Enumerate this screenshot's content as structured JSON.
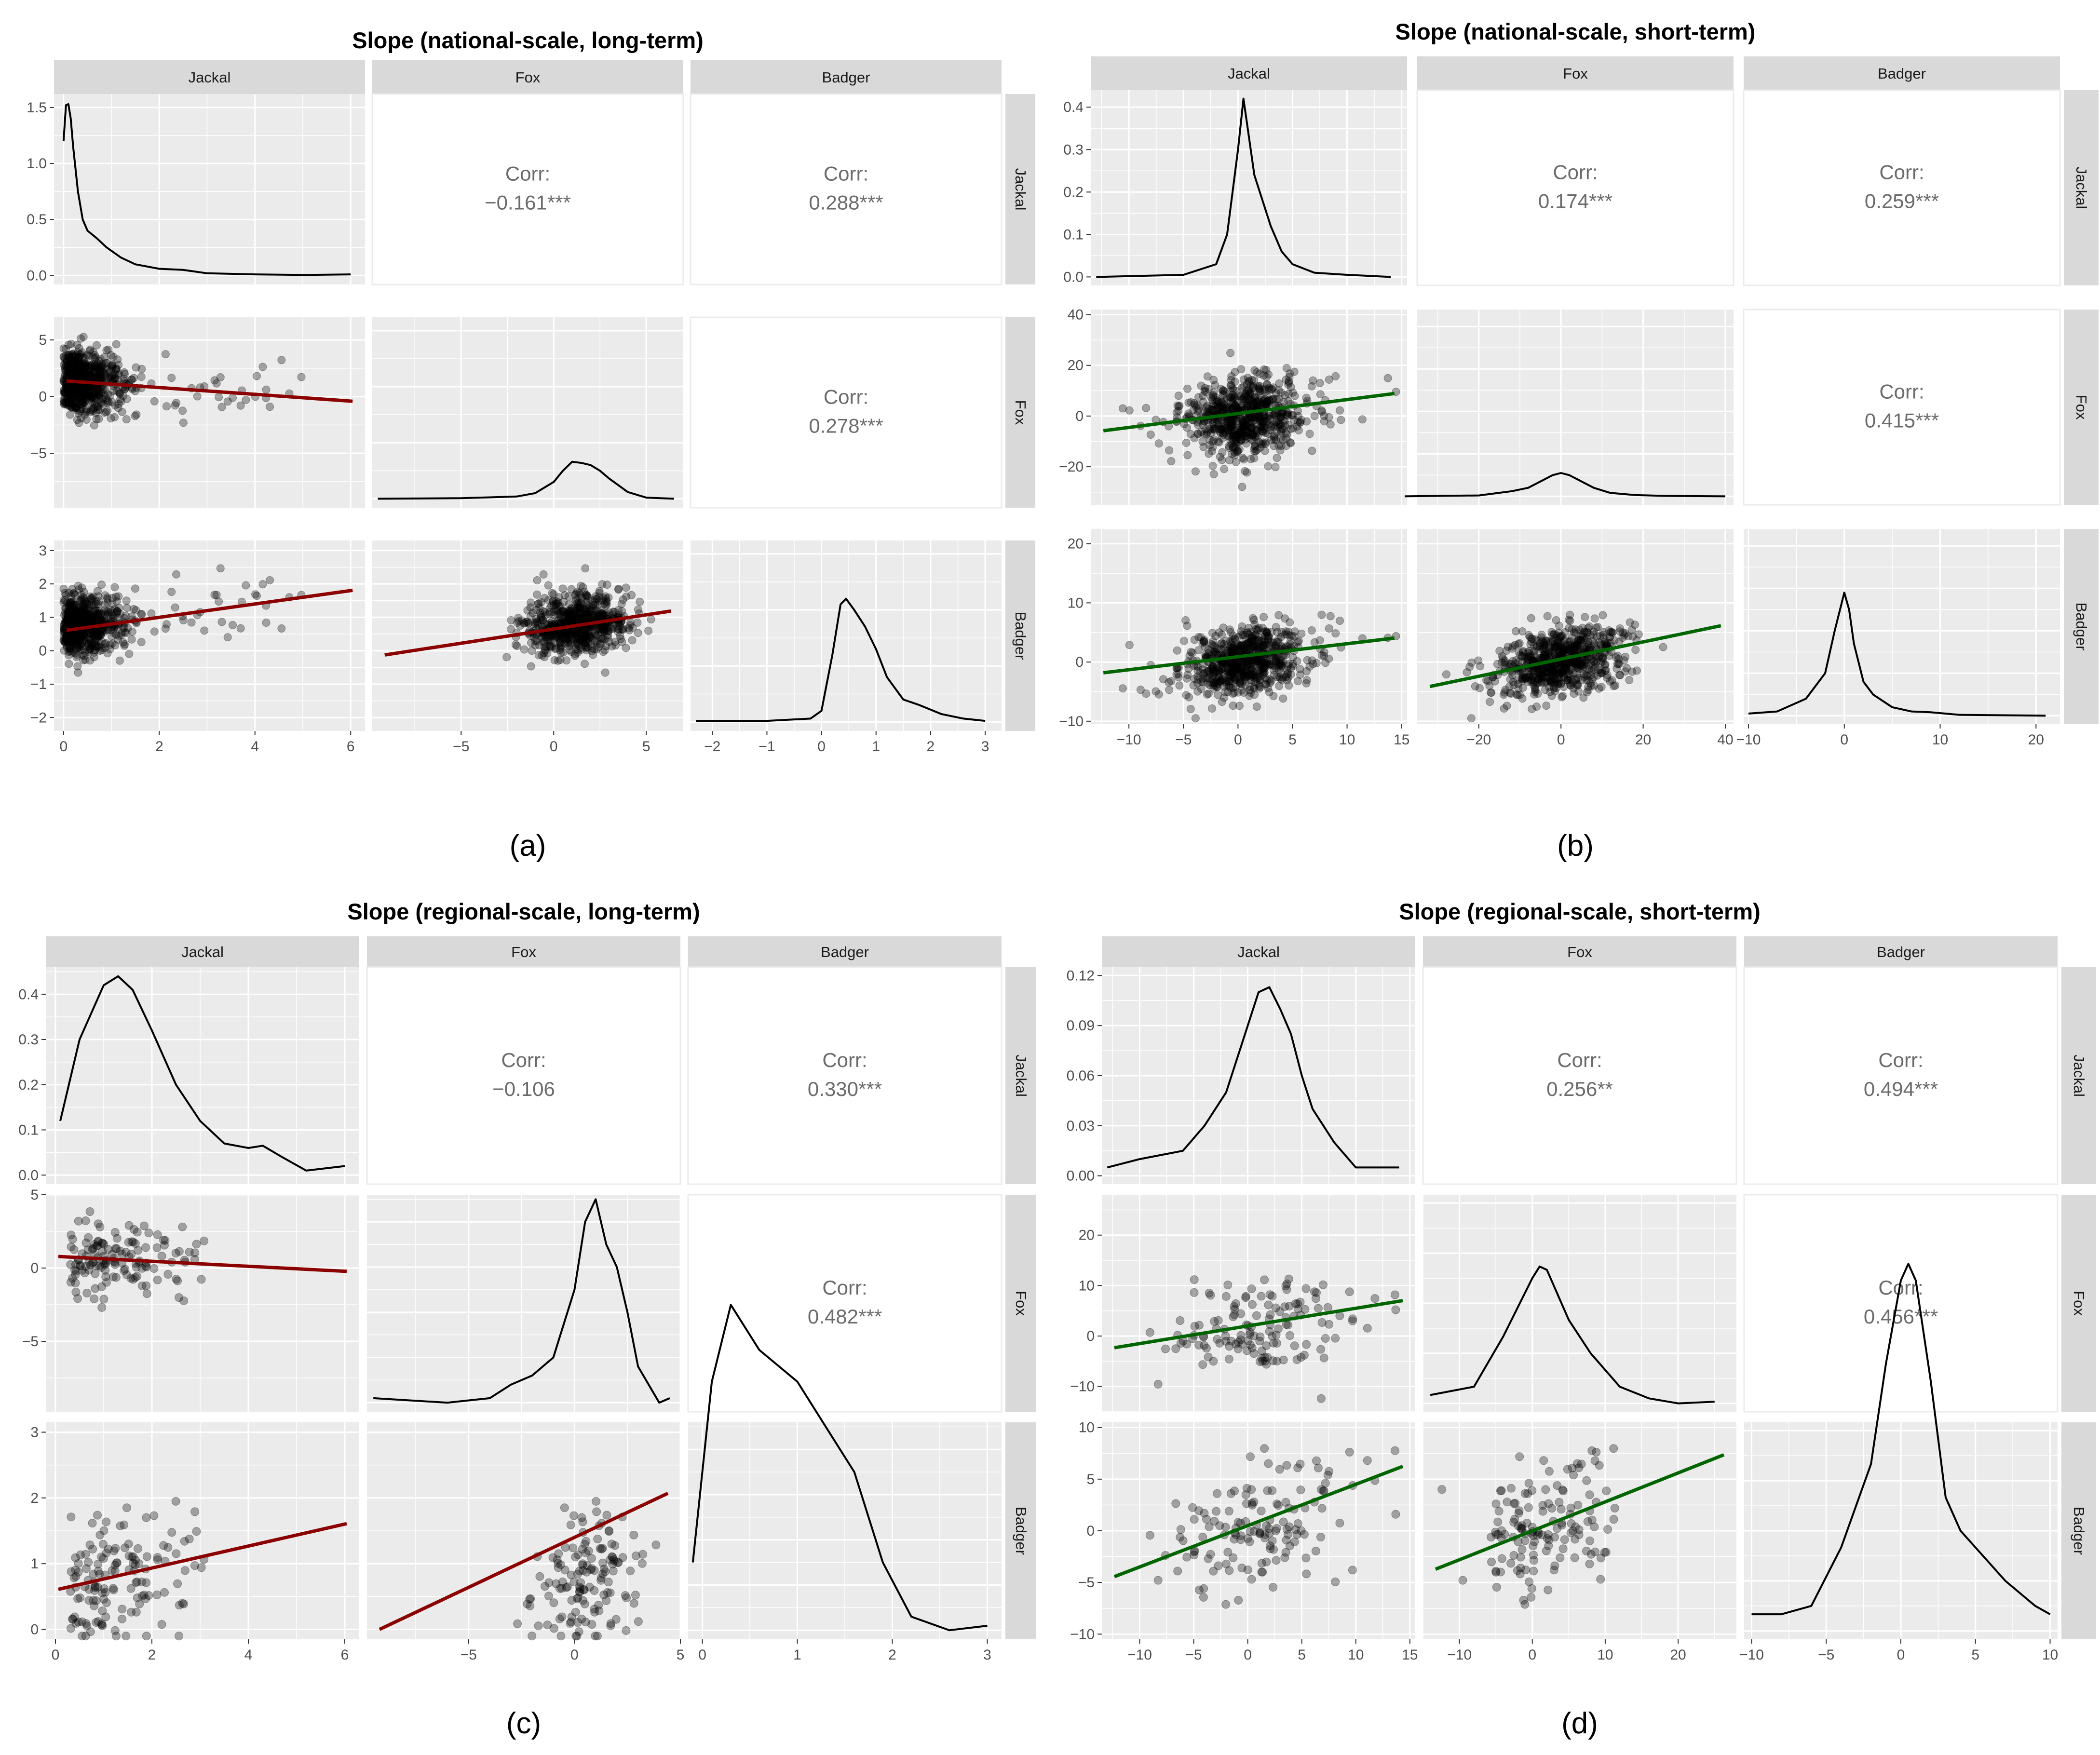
{
  "figure": {
    "species": [
      "Jackal",
      "Fox",
      "Badger"
    ],
    "corr_label": "Corr:",
    "colors": {
      "panel_bg": "#ebebeb",
      "strip_bg": "#d9d9d9",
      "grid": "#ffffff",
      "points": "#000000",
      "line_red": "#8b0000",
      "line_green": "#006400",
      "tick_text": "#4d4d4d",
      "corr_text": "#6b6b6b"
    }
  },
  "chart_data": [
    {
      "type": "scatter",
      "panel_label": "(a)",
      "title": "Slope (national-scale, long-term)",
      "line_color": "#8b0000",
      "n_points": 700,
      "ranges": {
        "Jackal": [
          -0.2,
          6.3
        ],
        "Fox": [
          -9.8,
          7.0
        ],
        "Badger": [
          -2.4,
          3.3
        ]
      },
      "ticks": {
        "Jackal": [
          0,
          2,
          4,
          6
        ],
        "Fox": [
          -5,
          0,
          5
        ],
        "Badger": [
          -2,
          -1,
          0,
          1,
          2,
          3
        ]
      },
      "density_ticks": [
        0.0,
        0.5,
        1.0,
        1.5
      ],
      "density_range": [
        -0.08,
        1.62
      ],
      "correlations": {
        "Fox|Jackal": "−0.161***",
        "Badger|Jackal": "0.288***",
        "Badger|Fox": "0.278***"
      },
      "regressions": {
        "Fox|Jackal": [
          1.4,
          -0.3
        ],
        "Badger|Jackal": [
          0.6,
          0.2
        ],
        "Badger|Fox": [
          0.65,
          0.085
        ]
      },
      "densities": {
        "Jackal": {
          "x": [
            0.0,
            0.05,
            0.1,
            0.15,
            0.2,
            0.3,
            0.4,
            0.5,
            0.7,
            0.9,
            1.2,
            1.5,
            2.0,
            2.5,
            3.0,
            4.0,
            5.0,
            6.0
          ],
          "y": [
            1.2,
            1.52,
            1.53,
            1.4,
            1.15,
            0.75,
            0.5,
            0.4,
            0.33,
            0.25,
            0.16,
            0.1,
            0.06,
            0.05,
            0.02,
            0.01,
            0.005,
            0.01
          ]
        },
        "Fox": {
          "x": [
            -9.5,
            -5,
            -2,
            -1,
            0,
            0.5,
            1.0,
            1.5,
            2.0,
            2.5,
            3.0,
            4.0,
            5.0,
            6.5
          ],
          "y": [
            0.0,
            0.005,
            0.02,
            0.05,
            0.15,
            0.25,
            0.33,
            0.32,
            0.3,
            0.25,
            0.18,
            0.06,
            0.01,
            0.0
          ]
        },
        "Badger": {
          "x": [
            -2.3,
            -1,
            -0.2,
            0.0,
            0.2,
            0.35,
            0.45,
            0.6,
            0.8,
            1.0,
            1.2,
            1.5,
            1.8,
            2.2,
            2.6,
            3.0
          ],
          "y": [
            0.01,
            0.01,
            0.03,
            0.1,
            0.6,
            1.05,
            1.1,
            1.0,
            0.85,
            0.65,
            0.4,
            0.2,
            0.15,
            0.07,
            0.03,
            0.01
          ]
        }
      }
    },
    {
      "type": "scatter",
      "panel_label": "(b)",
      "title": "Slope (national-scale, short-term)",
      "line_color": "#006400",
      "n_points": 700,
      "ranges": {
        "Jackal": [
          -13.5,
          15.5
        ],
        "Fox": [
          -35,
          42
        ],
        "Badger": [
          -10.5,
          22.5
        ]
      },
      "ticks": {
        "Jackal": [
          -10,
          -5,
          0,
          5,
          10,
          15
        ],
        "Fox": [
          -20,
          0,
          20,
          40
        ],
        "Badger": [
          -10,
          0,
          10,
          20
        ]
      },
      "density_ticks": [
        0.0,
        0.1,
        0.2,
        0.3,
        0.4
      ],
      "density_range": [
        -0.02,
        0.44
      ],
      "correlations": {
        "Fox|Jackal": "0.174***",
        "Badger|Jackal": "0.259***",
        "Badger|Fox": "0.415***"
      },
      "regressions": {
        "Fox|Jackal": [
          1.0,
          0.55
        ],
        "Badger|Jackal": [
          0.9,
          0.22
        ],
        "Badger|Fox": [
          0.5,
          0.145
        ]
      },
      "densities": {
        "Jackal": {
          "x": [
            -13,
            -5,
            -2,
            -1,
            0,
            0.5,
            1.0,
            1.5,
            2.0,
            3.0,
            4.0,
            5.0,
            7.0,
            10.0,
            14.0
          ],
          "y": [
            0.0,
            0.005,
            0.03,
            0.1,
            0.3,
            0.42,
            0.33,
            0.24,
            0.2,
            0.12,
            0.06,
            0.03,
            0.01,
            0.005,
            0.0
          ]
        },
        "Fox": {
          "x": [
            -38,
            -20,
            -12,
            -8,
            -4,
            -2,
            0,
            2,
            4,
            8,
            12,
            18,
            25,
            40
          ],
          "y": [
            0.0,
            0.002,
            0.012,
            0.02,
            0.04,
            0.05,
            0.055,
            0.05,
            0.04,
            0.02,
            0.008,
            0.003,
            0.001,
            0.0
          ]
        },
        "Badger": {
          "x": [
            -10,
            -7,
            -4,
            -2,
            -1,
            0,
            0.5,
            1,
            2,
            3,
            5,
            7,
            9,
            12,
            21
          ],
          "y": [
            0.005,
            0.01,
            0.04,
            0.1,
            0.2,
            0.29,
            0.25,
            0.17,
            0.08,
            0.05,
            0.02,
            0.01,
            0.008,
            0.002,
            0.0
          ]
        }
      }
    },
    {
      "type": "scatter",
      "panel_label": "(c)",
      "title": "Slope (regional-scale, long-term)",
      "line_color": "#8b0000",
      "n_points": 140,
      "ranges": {
        "Jackal": [
          -0.2,
          6.3
        ],
        "Fox": [
          -9.8,
          5.0
        ],
        "Badger": [
          -0.15,
          3.15
        ]
      },
      "ticks": {
        "Jackal": [
          0,
          2,
          4,
          6
        ],
        "Fox": [
          -5,
          0,
          5
        ],
        "Badger": [
          0,
          1,
          2,
          3
        ]
      },
      "density_ticks": [
        0.0,
        0.1,
        0.2,
        0.3,
        0.4
      ],
      "density_range": [
        -0.02,
        0.46
      ],
      "correlations": {
        "Fox|Jackal": "−0.106",
        "Badger|Jackal": "0.330***",
        "Badger|Fox": "0.482***"
      },
      "regressions": {
        "Fox|Jackal": [
          0.8,
          -0.17
        ],
        "Badger|Jackal": [
          0.6,
          0.167
        ],
        "Badger|Fox": [
          1.4,
          0.152
        ]
      },
      "densities": {
        "Jackal": {
          "x": [
            0.1,
            0.5,
            1.0,
            1.3,
            1.6,
            2.0,
            2.5,
            3.0,
            3.5,
            4.0,
            4.3,
            4.7,
            5.2,
            6.0
          ],
          "y": [
            0.12,
            0.3,
            0.42,
            0.44,
            0.41,
            0.32,
            0.2,
            0.12,
            0.07,
            0.06,
            0.065,
            0.04,
            0.01,
            0.02
          ]
        },
        "Fox": {
          "x": [
            -9.5,
            -6,
            -4,
            -3,
            -2,
            -1,
            0,
            0.5,
            1.0,
            1.5,
            2.0,
            2.5,
            3.0,
            4.0,
            4.5
          ],
          "y": [
            0.01,
            0.0,
            0.01,
            0.04,
            0.06,
            0.1,
            0.25,
            0.4,
            0.45,
            0.35,
            0.3,
            0.2,
            0.08,
            0.0,
            0.01
          ]
        },
        "Badger": {
          "x": [
            -0.1,
            0.1,
            0.3,
            0.6,
            1.0,
            1.3,
            1.6,
            1.9,
            2.2,
            2.6,
            3.0
          ],
          "y": [
            0.15,
            0.55,
            0.72,
            0.62,
            0.55,
            0.45,
            0.35,
            0.15,
            0.03,
            0.0,
            0.01
          ]
        }
      }
    },
    {
      "type": "scatter",
      "panel_label": "(d)",
      "title": "Slope (regional-scale, short-term)",
      "line_color": "#006400",
      "n_points": 140,
      "ranges": {
        "Jackal": [
          -13.5,
          15.5
        ],
        "Fox": [
          -15,
          28
        ],
        "Badger": [
          -10.5,
          10.5
        ]
      },
      "ticks": {
        "Jackal": [
          -10,
          -5,
          0,
          5,
          10,
          15
        ],
        "Fox": [
          -10,
          0,
          10,
          20
        ],
        "Badger": [
          -10,
          -5,
          0,
          5,
          10
        ]
      },
      "density_ticks": [
        0.0,
        0.03,
        0.06,
        0.09,
        0.12
      ],
      "density_range": [
        -0.005,
        0.125
      ],
      "correlations": {
        "Fox|Jackal": "0.256**",
        "Badger|Jackal": "0.494***",
        "Badger|Fox": "0.456***"
      },
      "regressions": {
        "Fox|Jackal": [
          2.0,
          0.35
        ],
        "Badger|Jackal": [
          0.5,
          0.4
        ],
        "Badger|Fox": [
          0.0,
          0.28
        ]
      },
      "densities": {
        "Jackal": {
          "x": [
            -13,
            -10,
            -6,
            -4,
            -2,
            0,
            1,
            2,
            3,
            4,
            5,
            6,
            8,
            10,
            14
          ],
          "y": [
            0.005,
            0.01,
            0.015,
            0.03,
            0.05,
            0.09,
            0.11,
            0.113,
            0.1,
            0.085,
            0.06,
            0.04,
            0.02,
            0.005,
            0.005
          ]
        },
        "Fox": {
          "x": [
            -14,
            -8,
            -4,
            0,
            1,
            2,
            3,
            5,
            8,
            12,
            16,
            20,
            25
          ],
          "y": [
            0.005,
            0.01,
            0.04,
            0.075,
            0.082,
            0.08,
            0.07,
            0.05,
            0.03,
            0.01,
            0.003,
            0.0,
            0.001
          ]
        },
        "Badger": {
          "x": [
            -10,
            -8,
            -6,
            -4,
            -2,
            -1,
            0,
            0.5,
            1,
            2,
            3,
            4,
            5,
            7,
            9,
            10
          ],
          "y": [
            0.01,
            0.01,
            0.015,
            0.05,
            0.1,
            0.16,
            0.21,
            0.22,
            0.21,
            0.15,
            0.08,
            0.06,
            0.05,
            0.03,
            0.015,
            0.01
          ]
        }
      }
    }
  ]
}
